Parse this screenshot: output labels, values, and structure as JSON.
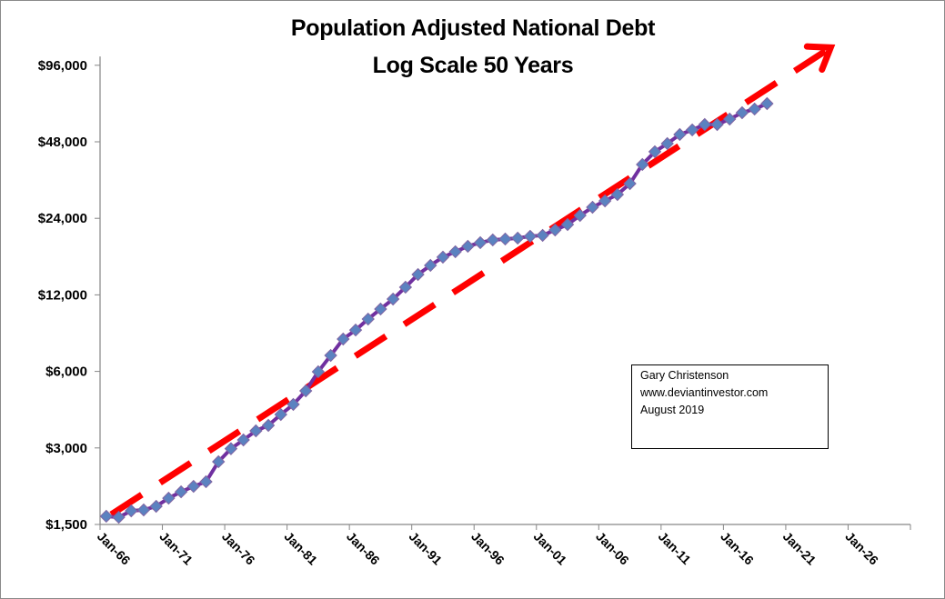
{
  "chart_data": {
    "type": "line",
    "title": "Population Adjusted National Debt",
    "subtitle": "Log Scale 50 Years",
    "xlabel": "",
    "ylabel": "",
    "yscale": "log2",
    "ylim": [
      1500,
      104000
    ],
    "xlim": [
      1966,
      2031
    ],
    "grid": false,
    "legend": "none",
    "y_ticks": [
      {
        "value": 1500,
        "label": "$1,500"
      },
      {
        "value": 3000,
        "label": "$3,000"
      },
      {
        "value": 6000,
        "label": "$6,000"
      },
      {
        "value": 12000,
        "label": "$12,000"
      },
      {
        "value": 24000,
        "label": "$24,000"
      },
      {
        "value": 48000,
        "label": "$48,000"
      },
      {
        "value": 96000,
        "label": "$96,000"
      }
    ],
    "x_ticks": [
      {
        "value": 1966,
        "label": "Jan-66"
      },
      {
        "value": 1971,
        "label": "Jan-71"
      },
      {
        "value": 1976,
        "label": "Jan-76"
      },
      {
        "value": 1981,
        "label": "Jan-81"
      },
      {
        "value": 1986,
        "label": "Jan-86"
      },
      {
        "value": 1991,
        "label": "Jan-91"
      },
      {
        "value": 1996,
        "label": "Jan-96"
      },
      {
        "value": 2001,
        "label": "Jan-01"
      },
      {
        "value": 2006,
        "label": "Jan-06"
      },
      {
        "value": 2011,
        "label": "Jan-11"
      },
      {
        "value": 2016,
        "label": "Jan-16"
      },
      {
        "value": 2021,
        "label": "Jan-21"
      },
      {
        "value": 2026,
        "label": "Jan-26"
      },
      {
        "value": 2031,
        "label": ""
      }
    ],
    "series": [
      {
        "name": "Population Adjusted National Debt",
        "line_color": "#7030A0",
        "marker_color": "#5B82C0",
        "marker": "diamond",
        "x": [
          1966.5,
          1967.5,
          1968.5,
          1969.5,
          1970.5,
          1971.5,
          1972.5,
          1973.5,
          1974.5,
          1975.5,
          1976.5,
          1977.5,
          1978.5,
          1979.5,
          1980.5,
          1981.5,
          1982.5,
          1983.5,
          1984.5,
          1985.5,
          1986.5,
          1987.5,
          1988.5,
          1989.5,
          1990.5,
          1991.5,
          1992.5,
          1993.5,
          1994.5,
          1995.5,
          1996.5,
          1997.5,
          1998.5,
          1999.5,
          2000.5,
          2001.5,
          2002.5,
          2003.5,
          2004.5,
          2005.5,
          2006.5,
          2007.5,
          2008.5,
          2009.5,
          2010.5,
          2011.5,
          2012.5,
          2013.5,
          2014.5,
          2015.5,
          2016.5,
          2017.5,
          2018.5,
          2019.5
        ],
        "values": [
          1616,
          1601,
          1697,
          1711,
          1768,
          1903,
          2016,
          2118,
          2209,
          2648,
          2980,
          3225,
          3502,
          3679,
          4060,
          4449,
          5030,
          5983,
          6933,
          8043,
          8728,
          9636,
          10556,
          11552,
          12863,
          14427,
          15672,
          16887,
          17737,
          18630,
          19256,
          19734,
          19900,
          20065,
          20400,
          20570,
          21600,
          22695,
          24634,
          26530,
          28110,
          29780,
          32860,
          39090,
          43870,
          47230,
          51290,
          53450,
          56130,
          56130,
          58960,
          62470,
          64570,
          67830
        ]
      },
      {
        "name": "Trend",
        "style": "dashed-arrow",
        "line_color": "#FF0000",
        "x": [
          1966.9,
          2024.6
        ],
        "values": [
          1643,
          112700
        ]
      }
    ],
    "annotations": [
      {
        "lines": [
          "Gary Christenson",
          "www.deviantinvestor.com",
          "August 2019"
        ],
        "placement": "lower-right"
      }
    ]
  }
}
